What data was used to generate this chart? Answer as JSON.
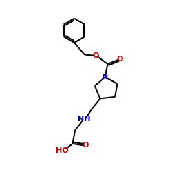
{
  "background_color": "#ffffff",
  "bond_color": "#000000",
  "bond_width": 1.5,
  "n_color": "#0000cc",
  "o_color": "#cc0000",
  "font_size": 7.5,
  "fig_w": 2.5,
  "fig_h": 2.5,
  "dpi": 100,
  "xlim": [
    0,
    10
  ],
  "ylim": [
    0,
    10
  ]
}
